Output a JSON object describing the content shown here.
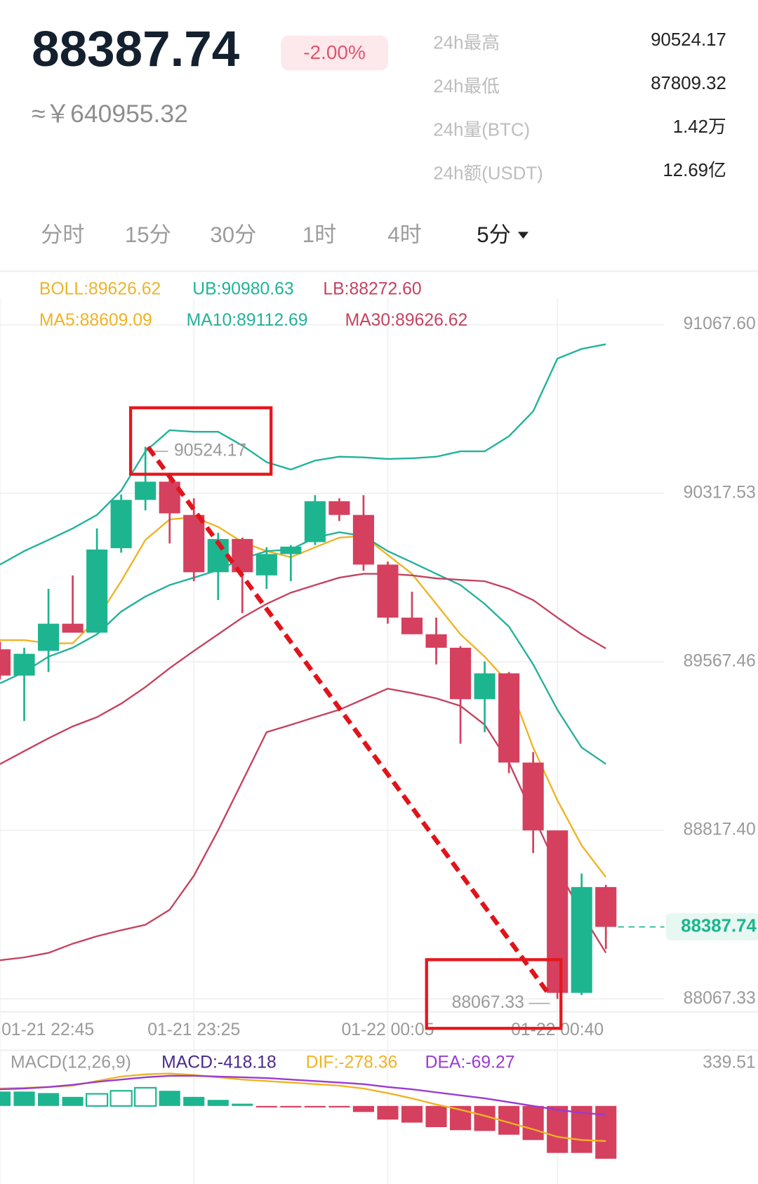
{
  "header": {
    "price": "88387.74",
    "change": "-2.00%",
    "cny": "≈￥640955.32",
    "stats": [
      {
        "label": "24h最高",
        "value": "90524.17"
      },
      {
        "label": "24h最低",
        "value": "87809.32"
      },
      {
        "label": "24h量(BTC)",
        "value": "1.42万"
      },
      {
        "label": "24h额(USDT)",
        "value": "12.69亿"
      }
    ]
  },
  "tabs": [
    "分时",
    "15分",
    "30分",
    "1时",
    "4时",
    "5分"
  ],
  "chart_data": {
    "type": "candlestick",
    "categories": [
      "01-21 22:45",
      null,
      null,
      null,
      null,
      null,
      null,
      null,
      "01-21 23:25",
      null,
      null,
      null,
      null,
      null,
      null,
      null,
      "01-22 00:05",
      null,
      null,
      null,
      null,
      null,
      null,
      "01-22 00:40",
      null,
      null
    ],
    "ohlc": [
      [
        89623,
        89657,
        89489,
        89506
      ],
      [
        89506,
        89630,
        89304,
        89603
      ],
      [
        89616,
        89892,
        89522,
        89737
      ],
      [
        89737,
        89952,
        89697,
        89697
      ],
      [
        89697,
        90161,
        89697,
        90067
      ],
      [
        90073,
        90312,
        90053,
        90288
      ],
      [
        90288,
        90524.17,
        90241,
        90369
      ],
      [
        90369,
        90409,
        90094,
        90228
      ],
      [
        90221,
        90295,
        89926,
        89966
      ],
      [
        89966,
        90141,
        89842,
        90114
      ],
      [
        90114,
        90120,
        89784,
        89966
      ],
      [
        89952,
        90077,
        89892,
        90047
      ],
      [
        90047,
        90087,
        89926,
        90080
      ],
      [
        90100,
        90309,
        90087,
        90282
      ],
      [
        90282,
        90295,
        90194,
        90221
      ],
      [
        90221,
        90309,
        89973,
        90000
      ],
      [
        90000,
        90013,
        89737,
        89764
      ],
      [
        89764,
        89879,
        89690,
        89690
      ],
      [
        89690,
        89764,
        89556,
        89630
      ],
      [
        89630,
        89637,
        89203,
        89401
      ],
      [
        89401,
        89569,
        89254,
        89516
      ],
      [
        89516,
        89522,
        89072,
        89119
      ],
      [
        89119,
        89166,
        88716,
        88817
      ],
      [
        88817,
        88817,
        88067.33,
        88094
      ],
      [
        88094,
        88625,
        88084,
        88565
      ],
      [
        88565,
        88575,
        88289,
        88387.74
      ]
    ],
    "up_color": "#1db58f",
    "down_color": "#d5405e",
    "ylim": [
      88010,
      91185
    ],
    "yticks": [
      {
        "value": 91067.6,
        "label": "91067.60"
      },
      90317.53,
      89567.46,
      {
        "value": 88817.4,
        "label": "88817.40"
      },
      88067.33
    ],
    "grid": true,
    "boll_label": {
      "text": "BOLL:89626.62",
      "color": "#e9b52e"
    },
    "series": [
      {
        "label": "UB:90980.63",
        "color": "#20b39a",
        "values": [
          90000,
          90060,
          90110,
          90161,
          90221,
          90329,
          90504,
          90598,
          90591,
          90591,
          90530,
          90456,
          90423,
          90463,
          90480,
          90477,
          90470,
          90473,
          90480,
          90504,
          90504,
          90571,
          90682,
          90917,
          90960,
          90980.63
        ]
      },
      {
        "label": "LB:88272.60",
        "color": "#c4435f",
        "values": [
          88239,
          88252,
          88272,
          88313,
          88346,
          88373,
          88397,
          88464,
          88615,
          88817,
          89035,
          89254,
          89287,
          89321,
          89354,
          89401,
          89448,
          89428,
          89405,
          89371,
          89287,
          89119,
          88884,
          88649,
          88447,
          88272.6
        ]
      },
      {
        "label": "MA5:88609.09",
        "color": "#f0b323",
        "values": [
          89664,
          89664,
          89650,
          89650,
          89758,
          89926,
          90110,
          90201,
          90211,
          90168,
          90100,
          90060,
          90033,
          90077,
          90120,
          90127,
          90043,
          89959,
          89825,
          89690,
          89590,
          89472,
          89186,
          88951,
          88750,
          88609.09
        ]
      },
      {
        "label": "MA10:89112.69",
        "color": "#25b09b",
        "values": [
          89472,
          89522,
          89590,
          89630,
          89690,
          89791,
          89858,
          89909,
          89942,
          89976,
          90026,
          90060,
          90067,
          90120,
          90144,
          90127,
          90060,
          90010,
          89959,
          89909,
          89825,
          89724,
          89556,
          89354,
          89186,
          89112.69
        ]
      },
      {
        "label": "MA30:89626.62",
        "color": "#c4435f",
        "values": [
          89112,
          89170,
          89227,
          89280,
          89321,
          89381,
          89455,
          89539,
          89616,
          89690,
          89764,
          89825,
          89875,
          89909,
          89942,
          89959,
          89959,
          89952,
          89939,
          89932,
          89926,
          89892,
          89842,
          89764,
          89690,
          89626.62
        ]
      }
    ],
    "macd": {
      "label": "MACD(12,26,9)",
      "ylim": [
        -450,
        339.51
      ],
      "yticks": [
        339.51
      ],
      "bars": {
        "label": "MACD:-418.18",
        "color": "#4a2a8a",
        "values": [
          114,
          114,
          102,
          72,
          96,
          120,
          144,
          120,
          72,
          48,
          18,
          -6,
          -6,
          -6,
          -6,
          -48,
          -108,
          -132,
          -168,
          -192,
          -198,
          -228,
          -270,
          -372,
          -372,
          -418.18
        ]
      },
      "dif": {
        "label": "DIF:-278.36",
        "color": "#f0b323",
        "values": [
          138,
          144,
          150,
          161,
          197,
          233,
          251,
          257,
          245,
          227,
          209,
          197,
          185,
          173,
          161,
          138,
          102,
          60,
          12,
          -30,
          -78,
          -132,
          -185,
          -245,
          -270,
          -278.36
        ]
      },
      "dea": {
        "label": "DEA:-69.27",
        "color": "#9a3bd0",
        "values": [
          132,
          138,
          150,
          167,
          191,
          209,
          227,
          239,
          239,
          233,
          227,
          221,
          209,
          197,
          185,
          173,
          150,
          132,
          108,
          84,
          60,
          30,
          0,
          -30,
          -54,
          -69.27
        ]
      }
    }
  }
}
